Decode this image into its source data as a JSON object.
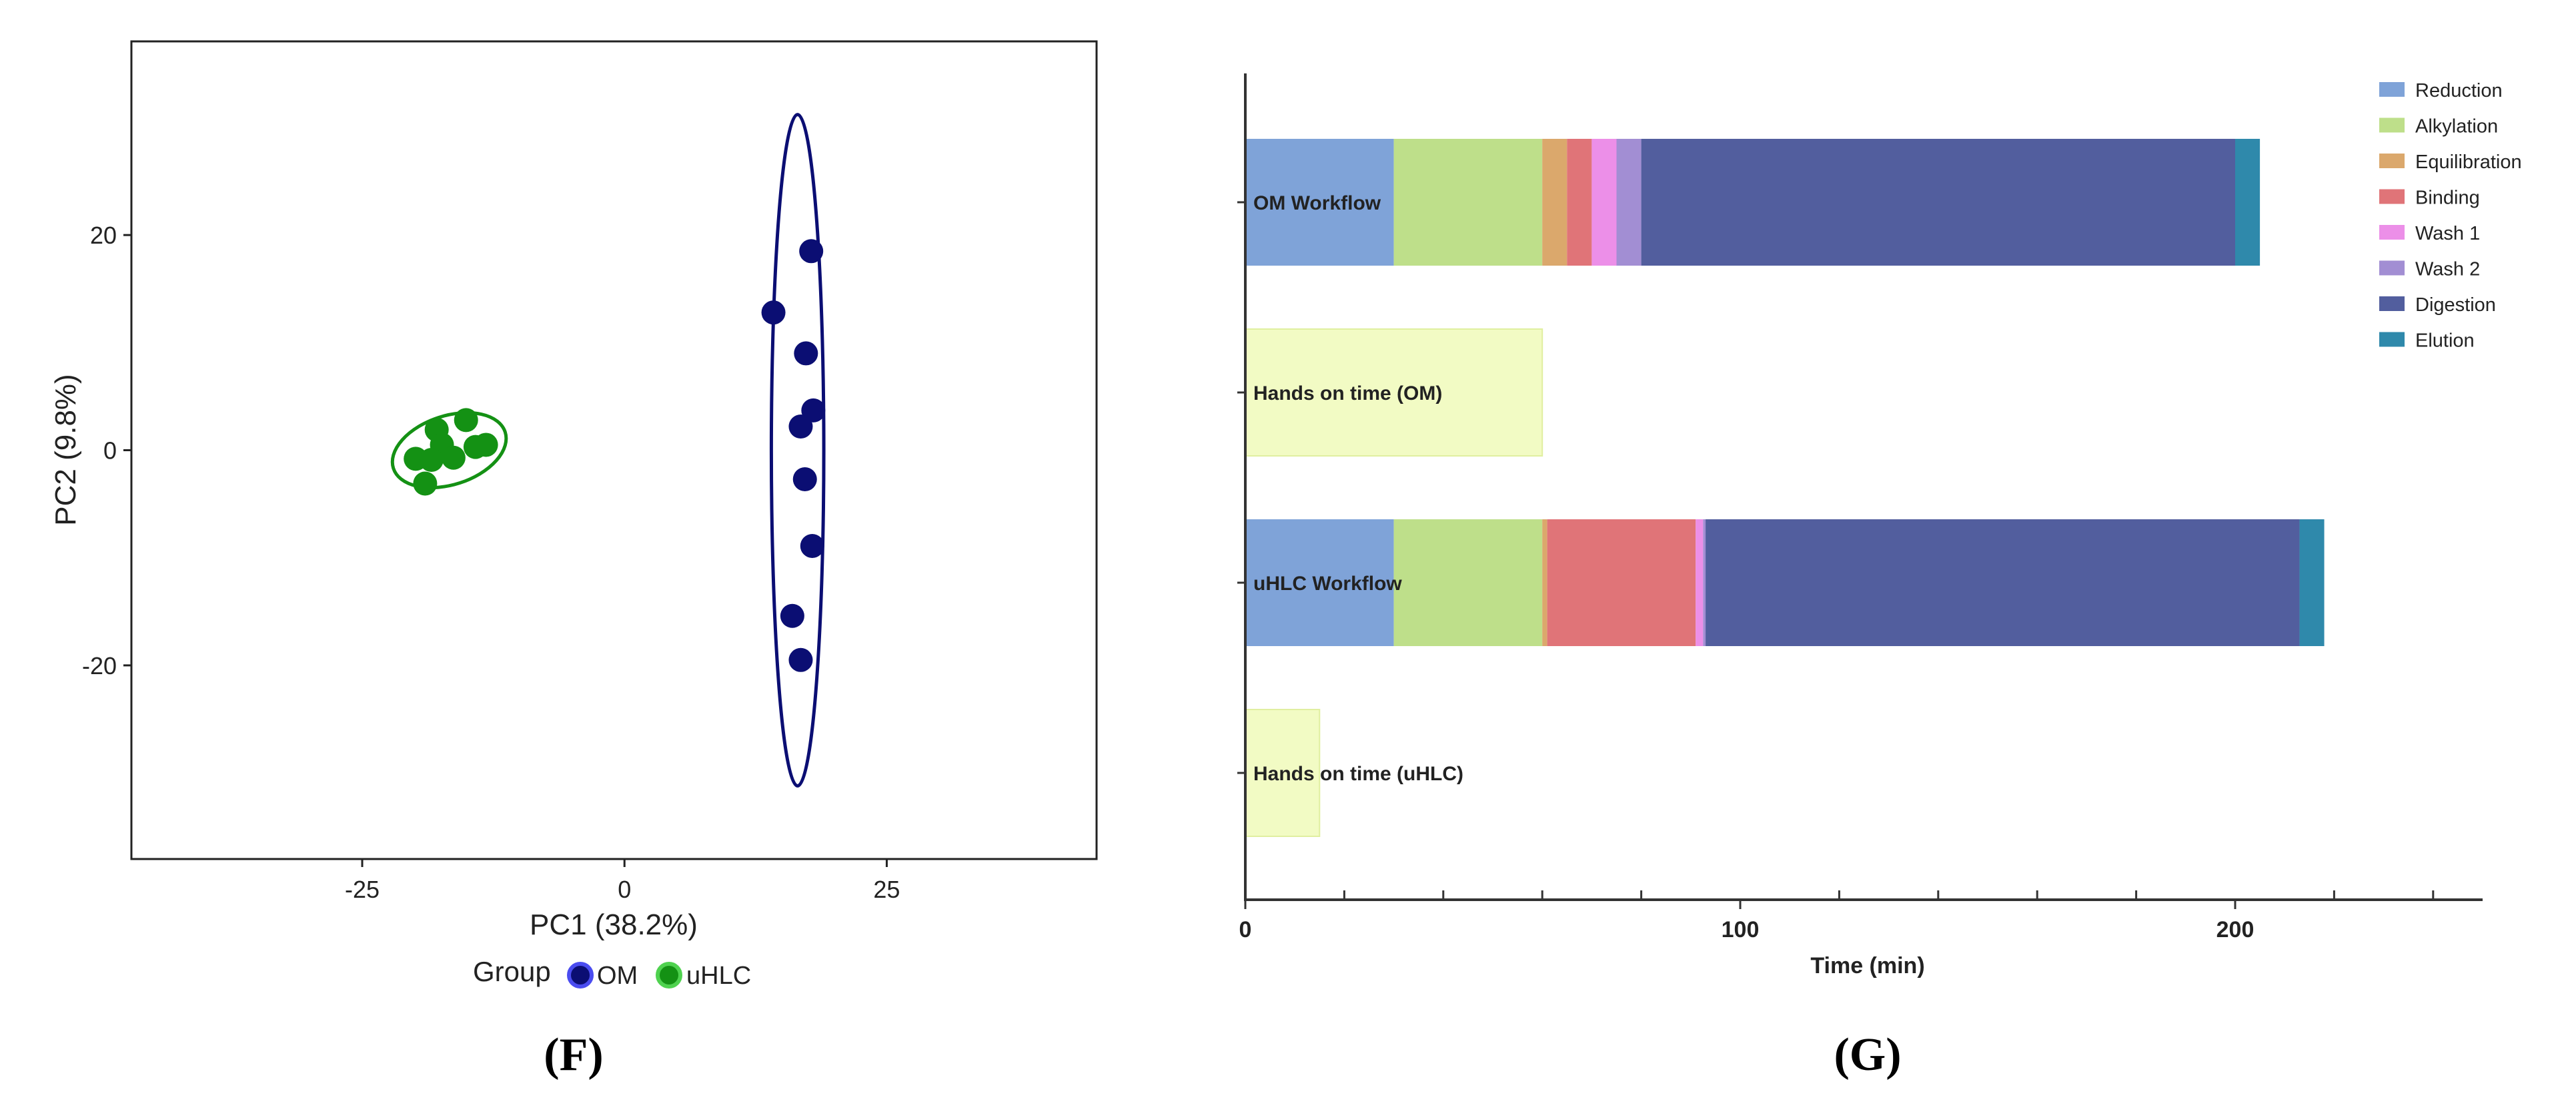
{
  "chart_data": [
    {
      "type": "scatter",
      "panel_label": "(F)",
      "xlabel": "PC1 (38.2%)",
      "ylabel": "PC2 (9.8%)",
      "xlim": [
        -47,
        45
      ],
      "ylim": [
        -38,
        38
      ],
      "xticks": [
        -25,
        0,
        25
      ],
      "yticks": [
        -20,
        0,
        20
      ],
      "grid": false,
      "legend": {
        "title": "Group",
        "entries": [
          "OM",
          "uHLC"
        ],
        "placement": "bottom-center"
      },
      "series": [
        {
          "name": "OM",
          "color": "#0b0e73",
          "points": [
            {
              "x": 17.8,
              "y": 18.5
            },
            {
              "x": 14.2,
              "y": 12.8
            },
            {
              "x": 17.3,
              "y": 9.0
            },
            {
              "x": 18.0,
              "y": 3.7
            },
            {
              "x": 16.8,
              "y": 2.2
            },
            {
              "x": 17.2,
              "y": -2.7
            },
            {
              "x": 17.9,
              "y": -8.9
            },
            {
              "x": 16.0,
              "y": -15.4
            },
            {
              "x": 16.8,
              "y": -19.5
            }
          ],
          "ellipse": {
            "cx": 16.5,
            "cy": 0,
            "rx": 2.5,
            "ry": 31.2,
            "angle": 0
          }
        },
        {
          "name": "uHLC",
          "color": "#149114",
          "points": [
            {
              "x": -15.1,
              "y": 2.8
            },
            {
              "x": -17.9,
              "y": 1.9
            },
            {
              "x": -17.4,
              "y": 0.5
            },
            {
              "x": -14.2,
              "y": 0.3
            },
            {
              "x": -13.2,
              "y": 0.5
            },
            {
              "x": -19.9,
              "y": -0.8
            },
            {
              "x": -18.4,
              "y": -0.9
            },
            {
              "x": -16.3,
              "y": -0.7
            },
            {
              "x": -19.0,
              "y": -3.1
            }
          ],
          "ellipse": {
            "cx": -16.7,
            "cy": 0,
            "rx": 5.6,
            "ry": 3.2,
            "angle": 18
          }
        }
      ]
    },
    {
      "type": "bar",
      "orientation": "horizontal",
      "stacked": true,
      "panel_label": "(G)",
      "xlabel": "Time (min)",
      "ylabel": "",
      "xlim": [
        0,
        250
      ],
      "xticks": [
        0,
        100,
        200
      ],
      "minor_ticks": [
        20,
        40,
        60,
        80,
        120,
        140,
        160,
        180,
        220,
        240
      ],
      "categories": [
        "OM Workflow",
        "Hands on time (OM)",
        "uHLC Workflow",
        "Hands on time (uHLC)"
      ],
      "legend_placement": "top-right",
      "series": [
        {
          "name": "Reduction",
          "color": "#7fa3d8",
          "values": [
            30,
            0,
            30,
            0
          ]
        },
        {
          "name": "Alkylation",
          "color": "#bedf8a",
          "values": [
            30,
            0,
            30,
            0
          ]
        },
        {
          "name": "Equilibration",
          "color": "#dba86c",
          "values": [
            5,
            0,
            1,
            0
          ]
        },
        {
          "name": "Binding",
          "color": "#e07478",
          "values": [
            5,
            0,
            30,
            0
          ]
        },
        {
          "name": "Wash 1",
          "color": "#ec8fe8",
          "values": [
            5,
            0,
            1.5,
            0
          ]
        },
        {
          "name": "Wash 2",
          "color": "#a28ed3",
          "values": [
            5,
            0,
            0.5,
            0
          ]
        },
        {
          "name": "Digestion",
          "color": "#525e9e",
          "values": [
            120,
            0,
            120,
            0
          ]
        },
        {
          "name": "Elution",
          "color": "#2f89ab",
          "values": [
            5,
            0,
            5,
            0
          ]
        }
      ],
      "hands_on": {
        "color": "#f2fbc4",
        "values": [
          0,
          60,
          0,
          15
        ]
      }
    }
  ]
}
